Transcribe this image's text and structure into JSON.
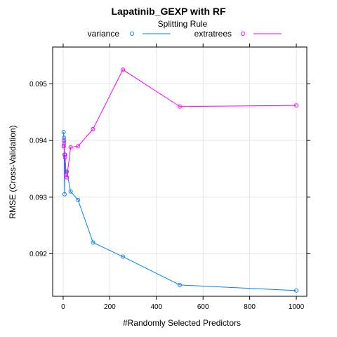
{
  "chart_data": {
    "type": "line",
    "title": "Lapatinib_GEXP with RF",
    "legend_title": "Splitting Rule",
    "legend_position": "top",
    "xlabel": "#Randomly Selected Predictors",
    "ylabel": "RMSE (Cross-Validation)",
    "xlim": [
      -45,
      1045
    ],
    "ylim": [
      0.09125,
      0.09565
    ],
    "xticks": [
      0,
      200,
      400,
      600,
      800,
      1000
    ],
    "yticks": [
      0.092,
      0.093,
      0.094,
      0.095
    ],
    "ytick_labels": [
      "0.092",
      "0.093",
      "0.094",
      "0.095"
    ],
    "grid": true,
    "series": [
      {
        "name": "variance",
        "color": "#0080ff",
        "x": [
          2,
          3,
          4,
          6,
          8,
          12,
          16,
          32,
          64,
          128,
          256,
          500,
          1000
        ],
        "y": [
          0.09415,
          0.09405,
          0.09395,
          0.09305,
          0.09375,
          0.09345,
          0.09345,
          0.0931,
          0.09295,
          0.0922,
          0.09195,
          0.09145,
          0.09135
        ]
      },
      {
        "name": "extratrees",
        "color": "#ff00ff",
        "x": [
          2,
          3,
          4,
          6,
          8,
          12,
          16,
          32,
          64,
          128,
          256,
          500,
          1000
        ],
        "y": [
          0.0939,
          0.0939,
          0.094,
          0.09375,
          0.0937,
          0.0934,
          0.09335,
          0.09388,
          0.0939,
          0.0942,
          0.09525,
          0.0946,
          0.09462
        ]
      }
    ]
  }
}
